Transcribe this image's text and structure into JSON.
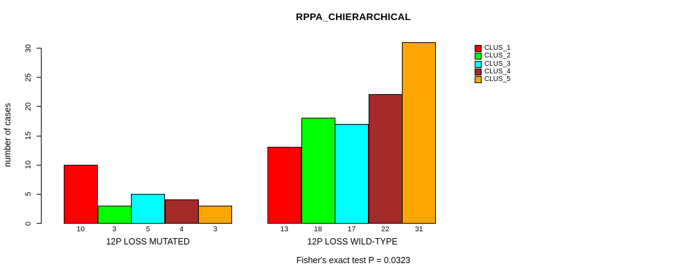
{
  "chart_data": {
    "type": "bar",
    "title": "RPPA_CHIERARCHICAL",
    "ylabel": "number of cases",
    "xlabel": "",
    "ylim": [
      0,
      31
    ],
    "yticks": [
      0,
      5,
      10,
      15,
      20,
      25,
      30
    ],
    "grid": false,
    "legend_position": "right",
    "bar_border_color": "#000000",
    "series": [
      {
        "name": "CLUS_1",
        "color": "#FF0000",
        "values": [
          10,
          13
        ]
      },
      {
        "name": "CLUS_2",
        "color": "#00FF00",
        "values": [
          3,
          18
        ]
      },
      {
        "name": "CLUS_3",
        "color": "#00FFFF",
        "values": [
          5,
          17
        ]
      },
      {
        "name": "CLUS_4",
        "color": "#A52A2A",
        "values": [
          4,
          22
        ]
      },
      {
        "name": "CLUS_5",
        "color": "#FFA500",
        "values": [
          3,
          31
        ]
      }
    ],
    "groups": [
      {
        "label": "12P LOSS MUTATED",
        "values": [
          10,
          3,
          5,
          4,
          3
        ]
      },
      {
        "label": "12P LOSS WILD-TYPE",
        "values": [
          13,
          18,
          17,
          22,
          31
        ]
      }
    ],
    "footnote": "Fisher's exact test P = 0.0323"
  }
}
